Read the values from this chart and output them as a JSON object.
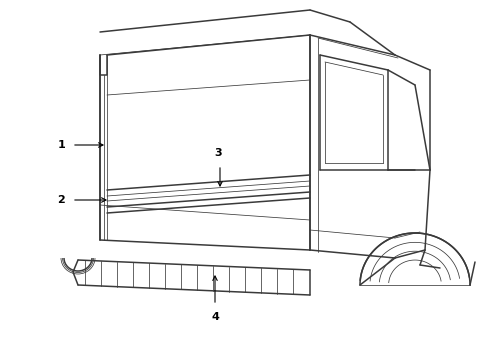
{
  "background_color": "#ffffff",
  "line_color": "#3a3a3a",
  "label_color": "#000000",
  "lw_main": 1.1,
  "lw_thin": 0.55,
  "lw_med": 0.75
}
